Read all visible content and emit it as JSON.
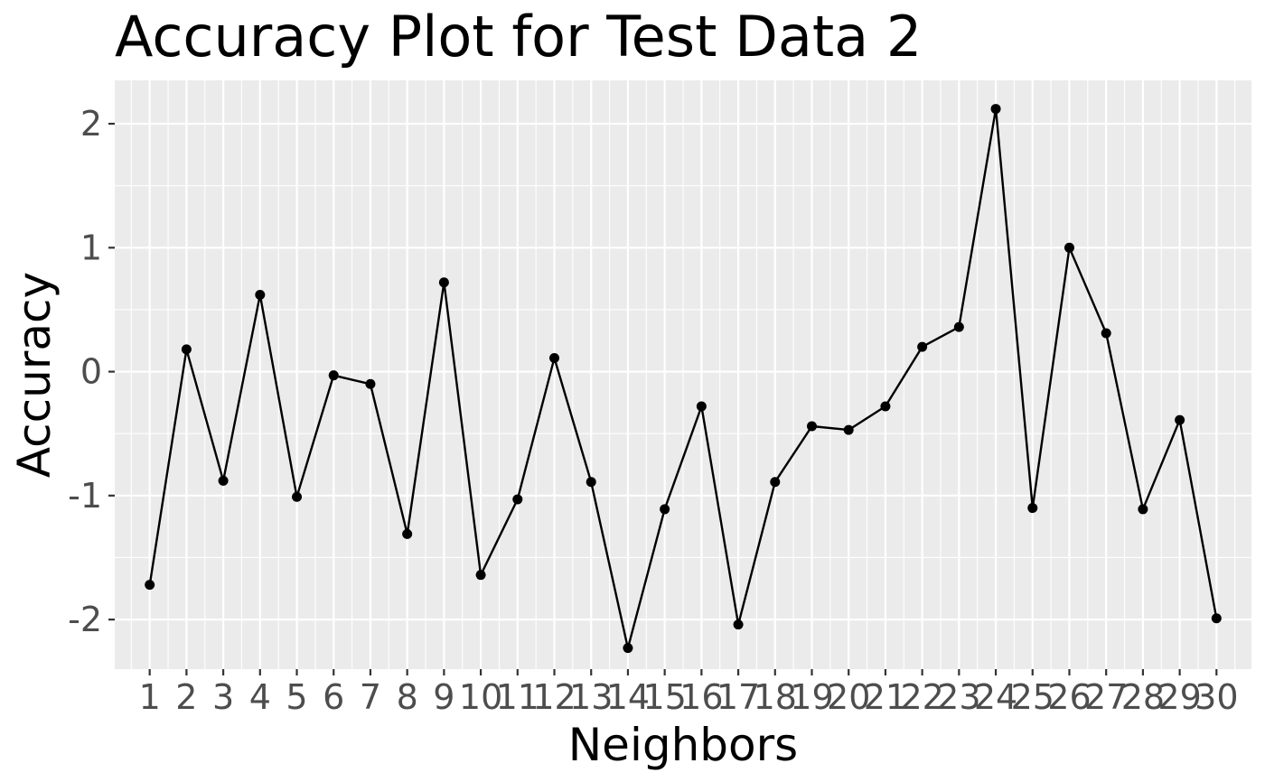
{
  "chart_data": {
    "type": "line",
    "title": "Accuracy Plot for Test Data 2",
    "xlabel": "Neighbors",
    "ylabel": "Accuracy",
    "x": [
      1,
      2,
      3,
      4,
      5,
      6,
      7,
      8,
      9,
      10,
      11,
      12,
      13,
      14,
      15,
      16,
      17,
      18,
      19,
      20,
      21,
      22,
      23,
      24,
      25,
      26,
      27,
      28,
      29,
      30
    ],
    "y": [
      -1.72,
      0.18,
      -0.88,
      0.62,
      -1.01,
      -0.03,
      -0.1,
      -1.31,
      0.72,
      -1.64,
      -1.03,
      0.11,
      -0.89,
      -2.23,
      -1.11,
      -0.28,
      -2.04,
      -0.89,
      -0.44,
      -0.47,
      -0.28,
      0.2,
      0.36,
      2.12,
      -1.1,
      1.0,
      0.31,
      -1.11,
      -0.39,
      -1.99
    ],
    "xlim": [
      0.05,
      30.95
    ],
    "ylim": [
      -2.4,
      2.35
    ],
    "yticks": [
      -2,
      -1,
      0,
      1,
      2
    ],
    "ytick_labels": [
      "-2",
      "-1",
      "0",
      "1",
      "2"
    ],
    "xtick_labels": [
      "1",
      "2",
      "3",
      "4",
      "5",
      "6",
      "7",
      "8",
      "9",
      "10",
      "11",
      "12",
      "13",
      "14",
      "15",
      "16",
      "17",
      "18",
      "19",
      "20",
      "21",
      "22",
      "23",
      "24",
      "25",
      "26",
      "27",
      "28",
      "29",
      "30"
    ],
    "grid": true,
    "colors": {
      "panel": "#ebebeb",
      "grid": "#ffffff",
      "line": "#000000",
      "tick_text": "#4d4d4d"
    }
  }
}
